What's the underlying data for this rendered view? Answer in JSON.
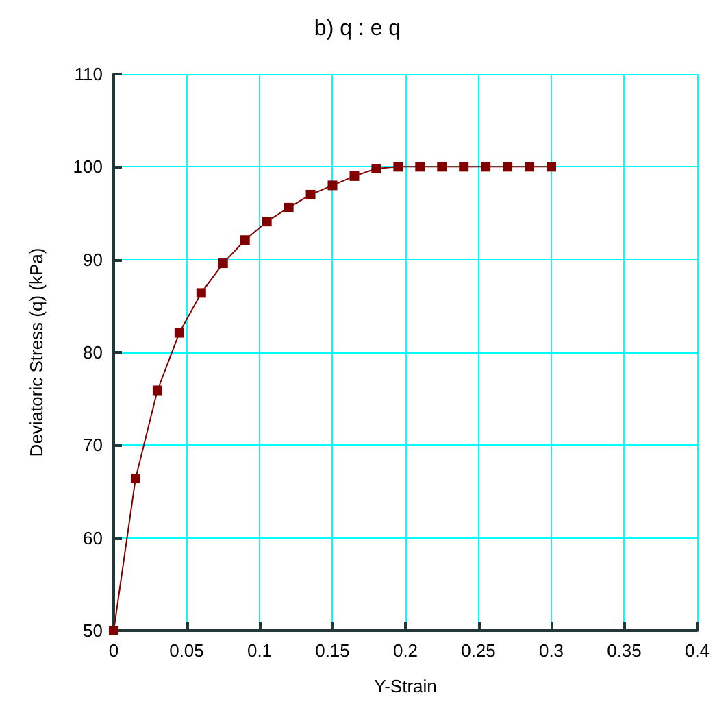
{
  "chart_data": {
    "type": "line",
    "title": "b) q : e q",
    "xlabel": "Y-Strain",
    "ylabel": "Deviatoric Stress (q) (kPa)",
    "x": [
      0,
      0.015,
      0.03,
      0.045,
      0.06,
      0.075,
      0.09,
      0.105,
      0.12,
      0.135,
      0.15,
      0.165,
      0.18,
      0.195,
      0.21,
      0.225,
      0.24,
      0.255,
      0.27,
      0.285,
      0.3
    ],
    "series": [
      {
        "color": "#800000",
        "values": [
          50,
          66.4,
          75.9,
          82.1,
          86.4,
          89.6,
          92.1,
          94.1,
          95.6,
          97.0,
          98.0,
          99.0,
          99.8,
          100,
          100,
          100,
          100,
          100,
          100,
          100,
          100
        ]
      }
    ],
    "xlim": [
      0,
      0.4
    ],
    "xticks": [
      0,
      0.05,
      0.1,
      0.15,
      0.2,
      0.25,
      0.3,
      0.35,
      0.4
    ],
    "ylim": [
      50,
      110
    ],
    "yticks": [
      50,
      60,
      70,
      80,
      90,
      100,
      110
    ],
    "grid": true,
    "marker": "square",
    "line_style": "solid"
  }
}
